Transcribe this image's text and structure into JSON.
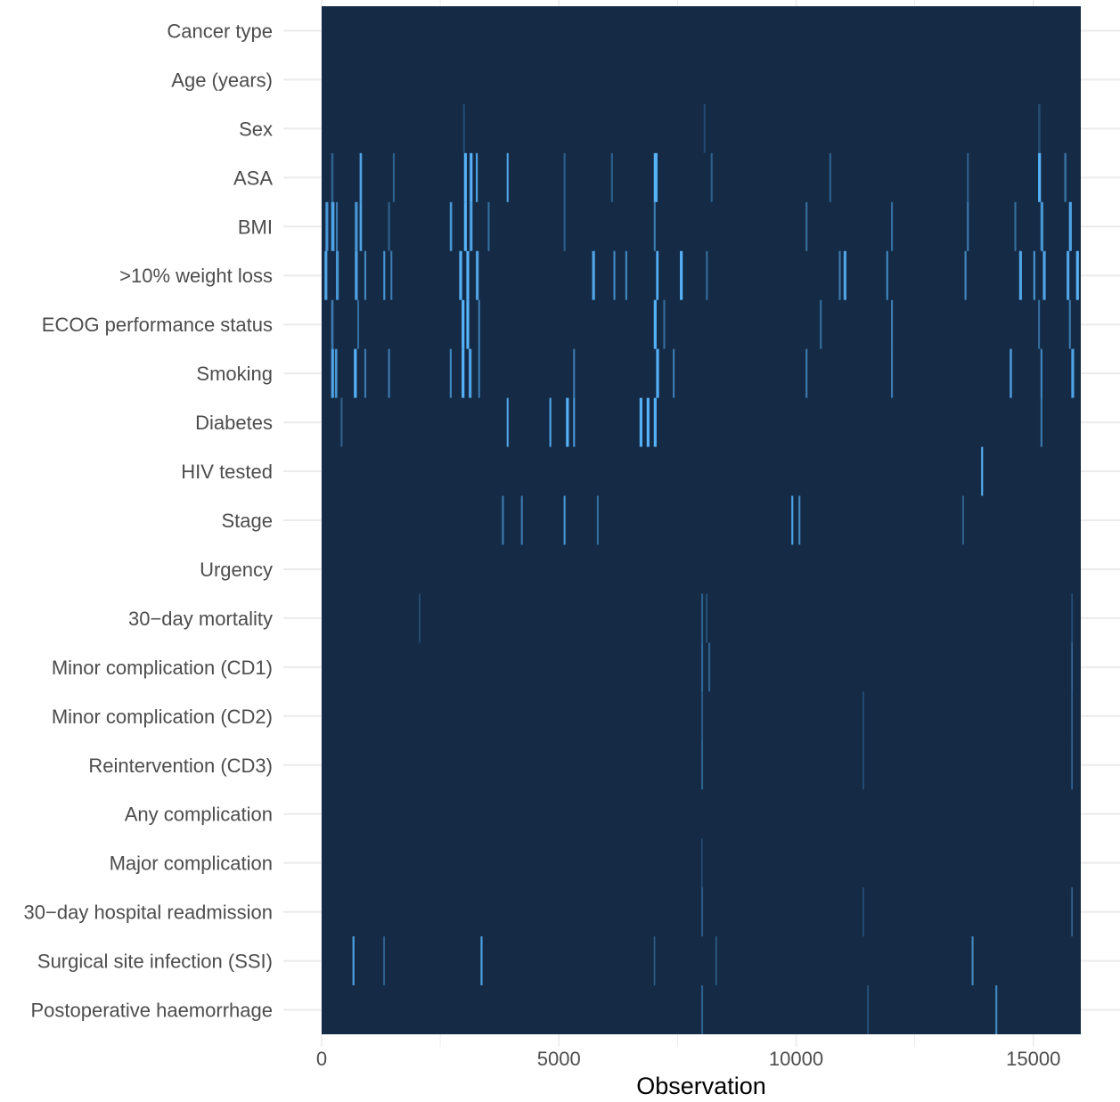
{
  "chart_data": {
    "type": "heatmap",
    "title": "",
    "xlabel": "Observation",
    "ylabel": "",
    "xlim": [
      0,
      16000
    ],
    "x_ticks": [
      0,
      5000,
      10000,
      15000
    ],
    "x_tick_labels": [
      "0",
      "5000",
      "10000",
      "15000"
    ],
    "grid": true,
    "legend": "none",
    "colors": {
      "base": "#142a45",
      "missing": "#56b1f7"
    },
    "rows": [
      {
        "label": "Cancer type",
        "missing": []
      },
      {
        "label": "Age (years)",
        "missing": []
      },
      {
        "label": "Sex",
        "missing": [
          [
            2980,
            40,
            0.25
          ],
          [
            8050,
            40,
            0.25
          ],
          [
            15100,
            50,
            0.25
          ]
        ]
      },
      {
        "label": "ASA",
        "missing": [
          [
            200,
            50,
            0.4
          ],
          [
            800,
            50,
            0.9
          ],
          [
            1500,
            40,
            0.4
          ],
          [
            3000,
            60,
            1
          ],
          [
            3120,
            60,
            1
          ],
          [
            3250,
            40,
            0.9
          ],
          [
            3900,
            40,
            0.9
          ],
          [
            5100,
            40,
            0.4
          ],
          [
            6100,
            40,
            0.4
          ],
          [
            7000,
            80,
            1
          ],
          [
            8200,
            40,
            0.4
          ],
          [
            10700,
            40,
            0.4
          ],
          [
            13600,
            40,
            0.4
          ],
          [
            15100,
            60,
            1
          ],
          [
            15650,
            50,
            0.5
          ]
        ]
      },
      {
        "label": "BMI",
        "missing": [
          [
            80,
            60,
            0.8
          ],
          [
            200,
            70,
            0.9
          ],
          [
            300,
            40,
            0.6
          ],
          [
            700,
            60,
            0.8
          ],
          [
            800,
            50,
            0.9
          ],
          [
            1400,
            40,
            0.4
          ],
          [
            2700,
            50,
            0.8
          ],
          [
            3000,
            60,
            1
          ],
          [
            3120,
            60,
            0.9
          ],
          [
            3500,
            40,
            0.5
          ],
          [
            5100,
            40,
            0.4
          ],
          [
            7000,
            40,
            0.6
          ],
          [
            10200,
            40,
            0.5
          ],
          [
            12000,
            40,
            0.5
          ],
          [
            13600,
            40,
            0.6
          ],
          [
            14600,
            40,
            0.5
          ],
          [
            15150,
            60,
            0.8
          ],
          [
            15750,
            60,
            0.9
          ]
        ]
      },
      {
        "label": ">10% weight loss",
        "missing": [
          [
            60,
            60,
            0.9
          ],
          [
            300,
            60,
            0.8
          ],
          [
            700,
            60,
            0.9
          ],
          [
            900,
            40,
            0.7
          ],
          [
            1300,
            40,
            0.8
          ],
          [
            1450,
            40,
            0.6
          ],
          [
            2900,
            60,
            1
          ],
          [
            3050,
            60,
            1
          ],
          [
            3250,
            60,
            0.9
          ],
          [
            5700,
            60,
            0.9
          ],
          [
            6150,
            40,
            0.7
          ],
          [
            6400,
            40,
            0.7
          ],
          [
            7050,
            50,
            1
          ],
          [
            7550,
            60,
            1
          ],
          [
            8100,
            40,
            0.5
          ],
          [
            10900,
            40,
            0.6
          ],
          [
            11000,
            60,
            0.9
          ],
          [
            11900,
            40,
            0.7
          ],
          [
            13550,
            40,
            0.7
          ],
          [
            14700,
            60,
            0.9
          ],
          [
            15000,
            40,
            0.8
          ],
          [
            15200,
            60,
            0.9
          ],
          [
            15700,
            60,
            0.9
          ],
          [
            15900,
            60,
            1
          ]
        ]
      },
      {
        "label": "ECOG performance status",
        "missing": [
          [
            200,
            50,
            0.6
          ],
          [
            750,
            40,
            0.5
          ],
          [
            2950,
            60,
            1
          ],
          [
            3050,
            60,
            1
          ],
          [
            3300,
            40,
            0.6
          ],
          [
            7000,
            60,
            1
          ],
          [
            7200,
            40,
            0.5
          ],
          [
            10500,
            40,
            0.5
          ],
          [
            12000,
            40,
            0.6
          ],
          [
            15100,
            40,
            0.5
          ],
          [
            15750,
            40,
            0.6
          ]
        ]
      },
      {
        "label": "Smoking",
        "missing": [
          [
            200,
            60,
            0.9
          ],
          [
            280,
            50,
            0.8
          ],
          [
            680,
            60,
            1
          ],
          [
            900,
            40,
            0.6
          ],
          [
            1400,
            40,
            0.6
          ],
          [
            2700,
            40,
            0.7
          ],
          [
            2950,
            60,
            1
          ],
          [
            3100,
            60,
            0.9
          ],
          [
            3300,
            40,
            0.6
          ],
          [
            5300,
            40,
            0.6
          ],
          [
            7050,
            60,
            1
          ],
          [
            7400,
            40,
            0.6
          ],
          [
            10200,
            40,
            0.6
          ],
          [
            12000,
            40,
            0.6
          ],
          [
            14500,
            50,
            0.8
          ],
          [
            15150,
            40,
            0.7
          ],
          [
            15800,
            60,
            0.9
          ]
        ]
      },
      {
        "label": "Diabetes",
        "missing": [
          [
            400,
            40,
            0.4
          ],
          [
            3900,
            40,
            0.9
          ],
          [
            4800,
            40,
            0.9
          ],
          [
            5150,
            60,
            1
          ],
          [
            5300,
            40,
            0.8
          ],
          [
            6700,
            60,
            1
          ],
          [
            6850,
            60,
            1
          ],
          [
            7000,
            60,
            1
          ],
          [
            15150,
            40,
            0.6
          ]
        ]
      },
      {
        "label": "HIV tested",
        "missing": [
          [
            13900,
            40,
            1
          ]
        ]
      },
      {
        "label": "Stage",
        "missing": [
          [
            3800,
            40,
            0.6
          ],
          [
            4200,
            40,
            0.6
          ],
          [
            5100,
            40,
            0.8
          ],
          [
            5800,
            40,
            0.5
          ],
          [
            9900,
            40,
            0.9
          ],
          [
            10050,
            40,
            0.7
          ],
          [
            13500,
            40,
            0.4
          ]
        ]
      },
      {
        "label": "Urgency",
        "missing": []
      },
      {
        "label": "30−day mortality",
        "missing": [
          [
            2050,
            30,
            0.3
          ],
          [
            8000,
            40,
            0.4
          ],
          [
            8100,
            30,
            0.35
          ],
          [
            15800,
            30,
            0.3
          ]
        ]
      },
      {
        "label": "Minor complication (CD1)",
        "missing": [
          [
            8000,
            40,
            0.45
          ],
          [
            8150,
            40,
            0.4
          ],
          [
            15800,
            30,
            0.5
          ]
        ]
      },
      {
        "label": "Minor complication (CD2)",
        "missing": [
          [
            8000,
            40,
            0.35
          ],
          [
            11400,
            30,
            0.3
          ],
          [
            15800,
            30,
            0.45
          ]
        ]
      },
      {
        "label": "Reintervention (CD3)",
        "missing": [
          [
            8000,
            40,
            0.4
          ],
          [
            11400,
            30,
            0.3
          ],
          [
            15800,
            30,
            0.45
          ]
        ]
      },
      {
        "label": "Any complication",
        "missing": []
      },
      {
        "label": "Major complication",
        "missing": [
          [
            8000,
            30,
            0.25
          ]
        ]
      },
      {
        "label": "30−day hospital readmission",
        "missing": [
          [
            8000,
            40,
            0.35
          ],
          [
            11400,
            30,
            0.3
          ],
          [
            15800,
            30,
            0.45
          ]
        ]
      },
      {
        "label": "Surgical site infection (SSI)",
        "missing": [
          [
            650,
            40,
            0.9
          ],
          [
            1300,
            30,
            0.5
          ],
          [
            3350,
            40,
            0.9
          ],
          [
            7000,
            30,
            0.4
          ],
          [
            8300,
            30,
            0.4
          ],
          [
            13700,
            40,
            0.7
          ]
        ]
      },
      {
        "label": "Postoperative haemorrhage",
        "missing": [
          [
            8000,
            40,
            0.4
          ],
          [
            11500,
            30,
            0.35
          ],
          [
            14200,
            40,
            0.7
          ]
        ]
      }
    ]
  }
}
